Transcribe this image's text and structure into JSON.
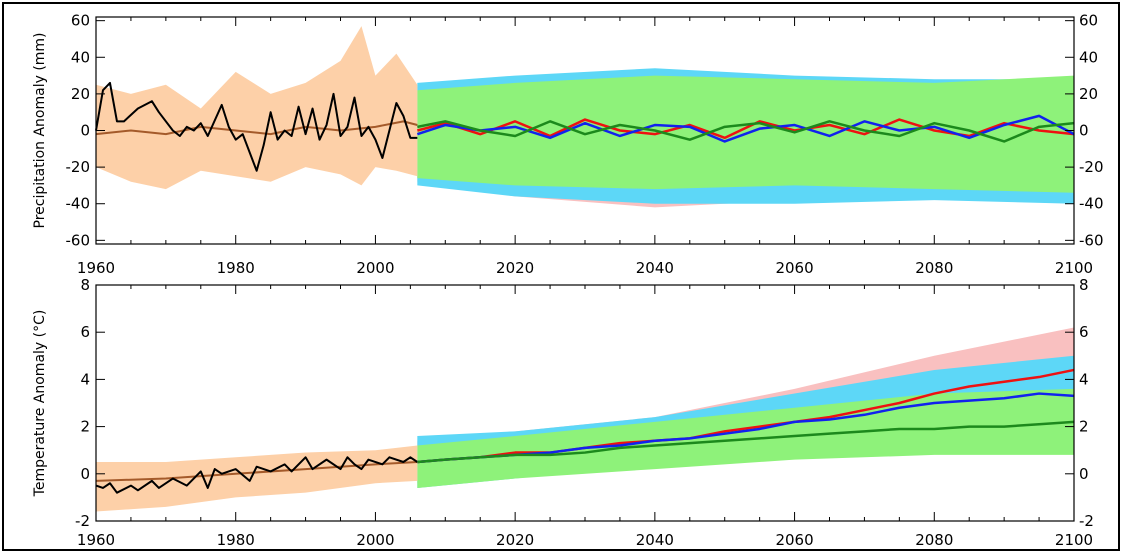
{
  "colors": {
    "hist_band": "#fdd0a8",
    "rcp85_band": "#f9c0c0",
    "rcp45_band": "#5dd7f7",
    "rcp26_band": "#8ef27a",
    "obs_line": "#000000",
    "hist_mean": "#a45a2a",
    "rcp85_line": "#ee1111",
    "rcp45_line": "#1122ee",
    "rcp26_line": "#1c8a1c"
  },
  "chart_data": [
    {
      "type": "line",
      "ylabel": "Precipitation Anomaly (mm)",
      "xlim": [
        1960,
        2100
      ],
      "ylim": [
        -62,
        62
      ],
      "xticks": [
        "1960",
        "1980",
        "2000",
        "2020",
        "2040",
        "2060",
        "2080",
        "2100"
      ],
      "yticks": [
        "-60",
        "-40",
        "-20",
        "0",
        "20",
        "40",
        "60"
      ],
      "yticks_right": [
        "-60",
        "-40",
        "-20",
        "0",
        "20",
        "40",
        "60"
      ],
      "bands": {
        "historical": {
          "x": [
            1960,
            1965,
            1970,
            1975,
            1980,
            1985,
            1990,
            1995,
            1998,
            2000,
            2003,
            2006
          ],
          "upper": [
            25,
            20,
            25,
            12,
            32,
            20,
            26,
            38,
            57,
            30,
            42,
            25
          ],
          "lower": [
            -20,
            -28,
            -32,
            -22,
            -25,
            -28,
            -20,
            -24,
            -30,
            -20,
            -22,
            -25
          ]
        },
        "rcp85": {
          "x": [
            2006,
            2020,
            2040,
            2060,
            2080,
            2100
          ],
          "upper": [
            24,
            26,
            30,
            28,
            25,
            24
          ],
          "lower": [
            -28,
            -36,
            -42,
            -38,
            -36,
            -40
          ]
        },
        "rcp45": {
          "x": [
            2006,
            2020,
            2040,
            2060,
            2080,
            2100
          ],
          "upper": [
            26,
            30,
            34,
            30,
            28,
            28
          ],
          "lower": [
            -30,
            -36,
            -40,
            -40,
            -38,
            -40
          ]
        },
        "rcp26": {
          "x": [
            2006,
            2020,
            2040,
            2060,
            2080,
            2100
          ],
          "upper": [
            22,
            26,
            30,
            28,
            26,
            30
          ],
          "lower": [
            -26,
            -30,
            -32,
            -30,
            -32,
            -34
          ]
        }
      },
      "series": [
        {
          "role": "observed",
          "x": [
            1960,
            1961,
            1962,
            1963,
            1964,
            1966,
            1968,
            1969,
            1971,
            1972,
            1973,
            1974,
            1975,
            1976,
            1978,
            1979,
            1980,
            1981,
            1983,
            1984,
            1985,
            1986,
            1987,
            1988,
            1989,
            1990,
            1991,
            1992,
            1993,
            1994,
            1995,
            1996,
            1997,
            1998,
            1999,
            2000,
            2001,
            2003,
            2004,
            2005,
            2006
          ],
          "values": [
            0,
            22,
            26,
            5,
            5,
            12,
            16,
            10,
            0,
            -3,
            2,
            0,
            4,
            -3,
            14,
            2,
            -5,
            -2,
            -22,
            -8,
            10,
            -5,
            0,
            -3,
            13,
            -2,
            12,
            -5,
            3,
            20,
            -3,
            2,
            18,
            -3,
            2,
            -5,
            -15,
            15,
            8,
            -4,
            -4
          ]
        },
        {
          "role": "historical-mean",
          "x": [
            1960,
            1965,
            1970,
            1975,
            1980,
            1985,
            1990,
            1995,
            2000,
            2004,
            2006
          ],
          "values": [
            -2,
            0,
            -2,
            2,
            0,
            -2,
            2,
            0,
            2,
            5,
            3
          ]
        },
        {
          "role": "rcp85",
          "x": [
            2006,
            2010,
            2015,
            2020,
            2025,
            2030,
            2035,
            2040,
            2045,
            2050,
            2055,
            2060,
            2065,
            2070,
            2075,
            2080,
            2085,
            2090,
            2095,
            2100
          ],
          "values": [
            0,
            4,
            -2,
            5,
            -3,
            6,
            0,
            -2,
            3,
            -4,
            5,
            0,
            3,
            -2,
            6,
            0,
            -3,
            4,
            0,
            -2
          ]
        },
        {
          "role": "rcp45",
          "x": [
            2006,
            2010,
            2015,
            2020,
            2025,
            2030,
            2035,
            2040,
            2045,
            2050,
            2055,
            2060,
            2065,
            2070,
            2075,
            2080,
            2085,
            2090,
            2095,
            2100
          ],
          "values": [
            -2,
            3,
            0,
            2,
            -4,
            4,
            -3,
            3,
            2,
            -6,
            1,
            3,
            -3,
            5,
            0,
            2,
            -4,
            3,
            8,
            -2
          ]
        },
        {
          "role": "rcp26",
          "x": [
            2006,
            2010,
            2015,
            2020,
            2025,
            2030,
            2035,
            2040,
            2045,
            2050,
            2055,
            2060,
            2065,
            2070,
            2075,
            2080,
            2085,
            2090,
            2095,
            2100
          ],
          "values": [
            2,
            5,
            0,
            -3,
            5,
            -2,
            3,
            0,
            -5,
            2,
            4,
            -1,
            5,
            0,
            -3,
            4,
            0,
            -6,
            2,
            4
          ]
        }
      ]
    },
    {
      "type": "line",
      "ylabel": "Temperature Anomaly (°C)",
      "xlim": [
        1960,
        2100
      ],
      "ylim": [
        -2,
        8
      ],
      "xticks": [
        "1960",
        "1980",
        "2000",
        "2020",
        "2040",
        "2060",
        "2080",
        "2100"
      ],
      "yticks": [
        "-2",
        "0",
        "2",
        "4",
        "6",
        "8"
      ],
      "yticks_right": [
        "-2",
        "0",
        "2",
        "4",
        "6",
        "8"
      ],
      "bands": {
        "historical": {
          "x": [
            1960,
            1970,
            1980,
            1990,
            2000,
            2006
          ],
          "upper": [
            0.5,
            0.5,
            0.7,
            0.9,
            1.0,
            1.2
          ],
          "lower": [
            -1.6,
            -1.4,
            -1.0,
            -0.8,
            -0.4,
            -0.3
          ]
        },
        "rcp85": {
          "x": [
            2006,
            2020,
            2040,
            2060,
            2080,
            2100
          ],
          "upper": [
            1.4,
            1.8,
            2.4,
            3.6,
            5.0,
            6.2
          ],
          "lower": [
            -0.4,
            0.0,
            0.6,
            1.6,
            2.6,
            3.2
          ]
        },
        "rcp45": {
          "x": [
            2006,
            2020,
            2040,
            2060,
            2080,
            2100
          ],
          "upper": [
            1.6,
            1.8,
            2.4,
            3.4,
            4.4,
            5.0
          ],
          "lower": [
            -0.6,
            -0.2,
            0.4,
            1.0,
            1.6,
            2.0
          ]
        },
        "rcp26": {
          "x": [
            2006,
            2020,
            2040,
            2060,
            2080,
            2100
          ],
          "upper": [
            1.2,
            1.6,
            2.2,
            2.8,
            3.4,
            3.6
          ],
          "lower": [
            -0.6,
            -0.2,
            0.2,
            0.6,
            0.8,
            0.8
          ]
        }
      },
      "series": [
        {
          "role": "observed",
          "x": [
            1960,
            1961,
            1962,
            1963,
            1965,
            1966,
            1968,
            1969,
            1971,
            1973,
            1975,
            1976,
            1977,
            1978,
            1980,
            1982,
            1983,
            1985,
            1987,
            1988,
            1990,
            1991,
            1993,
            1995,
            1996,
            1997,
            1998,
            1999,
            2001,
            2002,
            2004,
            2005,
            2006
          ],
          "values": [
            -0.5,
            -0.6,
            -0.4,
            -0.8,
            -0.5,
            -0.7,
            -0.3,
            -0.6,
            -0.2,
            -0.5,
            0.1,
            -0.6,
            0.2,
            0.0,
            0.2,
            -0.3,
            0.3,
            0.1,
            0.4,
            0.1,
            0.7,
            0.2,
            0.6,
            0.2,
            0.7,
            0.4,
            0.2,
            0.6,
            0.4,
            0.7,
            0.5,
            0.7,
            0.5
          ]
        },
        {
          "role": "historical-mean",
          "x": [
            1960,
            1970,
            1980,
            1990,
            2000,
            2006
          ],
          "values": [
            -0.3,
            -0.2,
            0.0,
            0.2,
            0.4,
            0.5
          ]
        },
        {
          "role": "rcp85",
          "x": [
            2006,
            2010,
            2015,
            2020,
            2025,
            2030,
            2035,
            2040,
            2045,
            2050,
            2055,
            2060,
            2065,
            2070,
            2075,
            2080,
            2085,
            2090,
            2095,
            2100
          ],
          "values": [
            0.5,
            0.6,
            0.7,
            0.9,
            0.9,
            1.1,
            1.3,
            1.4,
            1.5,
            1.8,
            2.0,
            2.2,
            2.4,
            2.7,
            3.0,
            3.4,
            3.7,
            3.9,
            4.1,
            4.4
          ]
        },
        {
          "role": "rcp45",
          "x": [
            2006,
            2010,
            2015,
            2020,
            2025,
            2030,
            2035,
            2040,
            2045,
            2050,
            2055,
            2060,
            2065,
            2070,
            2075,
            2080,
            2085,
            2090,
            2095,
            2100
          ],
          "values": [
            0.5,
            0.6,
            0.7,
            0.8,
            0.9,
            1.1,
            1.2,
            1.4,
            1.5,
            1.7,
            1.9,
            2.2,
            2.3,
            2.5,
            2.8,
            3.0,
            3.1,
            3.2,
            3.4,
            3.3
          ]
        },
        {
          "role": "rcp26",
          "x": [
            2006,
            2010,
            2015,
            2020,
            2025,
            2030,
            2035,
            2040,
            2045,
            2050,
            2055,
            2060,
            2065,
            2070,
            2075,
            2080,
            2085,
            2090,
            2095,
            2100
          ],
          "values": [
            0.5,
            0.6,
            0.7,
            0.8,
            0.8,
            0.9,
            1.1,
            1.2,
            1.3,
            1.4,
            1.5,
            1.6,
            1.7,
            1.8,
            1.9,
            1.9,
            2.0,
            2.0,
            2.1,
            2.2
          ]
        }
      ]
    }
  ]
}
